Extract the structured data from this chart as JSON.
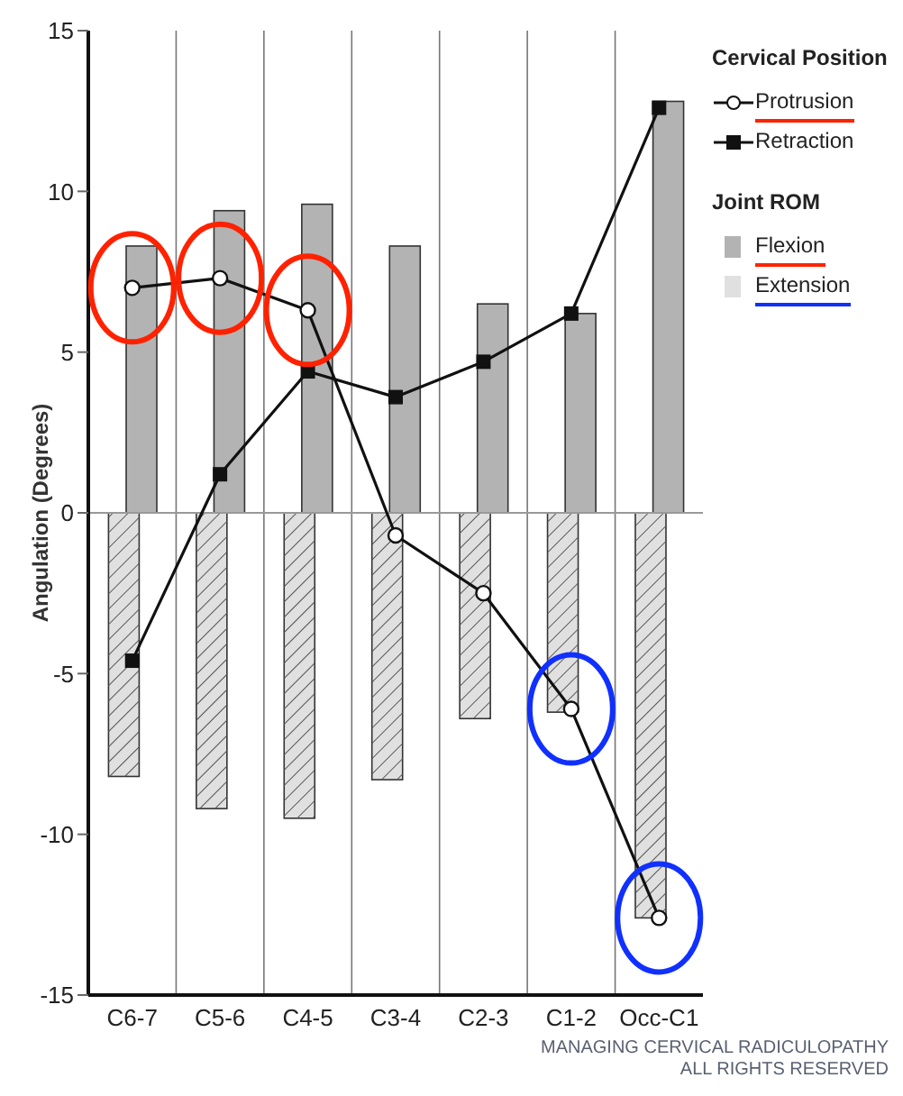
{
  "chart_data": {
    "type": "bar",
    "ylabel": "Angulation (Degrees)",
    "legend_title": "Cervical Position",
    "categories": [
      "C6-7",
      "C5-6",
      "C4-5",
      "C3-4",
      "C2-3",
      "C1-2",
      "Occ-C1"
    ],
    "series": [
      {
        "name": "Protrusion",
        "type": "line",
        "color": "#111111",
        "marker": "circle",
        "values": [
          7.0,
          7.3,
          6.3,
          -0.7,
          -2.5,
          -6.1,
          -12.6
        ]
      },
      {
        "name": "Retraction",
        "type": "line",
        "color": "#111111",
        "marker": "square",
        "values": [
          -4.6,
          1.2,
          4.4,
          3.6,
          4.7,
          6.2,
          12.6
        ]
      },
      {
        "name": "Flexion",
        "color": "#b3b3b3",
        "values": [
          8.3,
          9.4,
          9.6,
          8.3,
          6.5,
          6.2,
          12.8
        ]
      },
      {
        "name": "Extension",
        "color": "#e0e0e0",
        "values": [
          -8.2,
          -9.2,
          -9.5,
          -8.3,
          -6.4,
          -6.2,
          -12.6
        ]
      }
    ],
    "ylim": [
      -15,
      15
    ],
    "yticks": [
      -15,
      -10,
      -5,
      0,
      5,
      10,
      15
    ],
    "grid": "x",
    "legend": "top right",
    "ref_lines": [
      {
        "axis": "y",
        "value": 0,
        "color": "#999999"
      }
    ],
    "annotations": [
      "Joint ROM",
      "MANAGING CERVICAL RADICULOPATHY",
      "ALL RIGHTS RESERVED"
    ]
  }
}
